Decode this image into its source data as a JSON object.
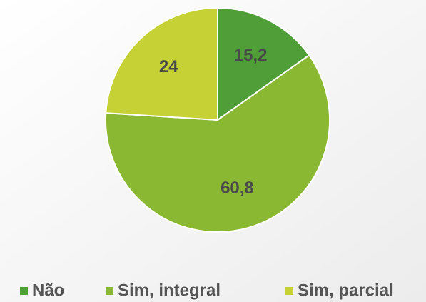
{
  "chart_data": {
    "type": "pie",
    "categories": [
      "Não",
      "Sim, integral",
      "Sim, parcial"
    ],
    "values": [
      15.2,
      60.8,
      24
    ],
    "value_labels": [
      "15,2",
      "60,8",
      "24"
    ],
    "colors": [
      "#4f9e37",
      "#8ab833",
      "#c5d135"
    ],
    "legend": "bottom"
  }
}
